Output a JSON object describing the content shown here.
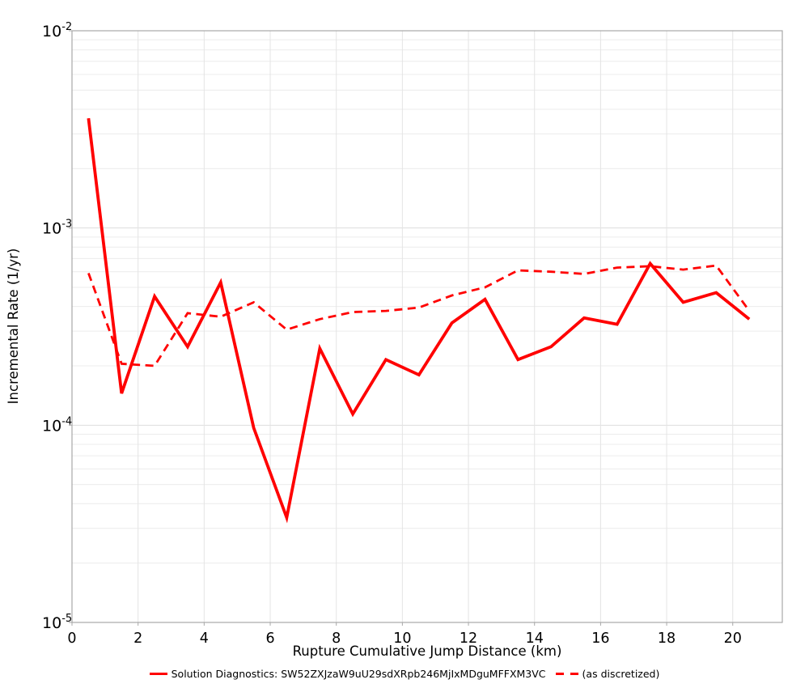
{
  "chart_data": {
    "type": "line",
    "x": [
      0.5,
      1.5,
      2.5,
      3.5,
      4.5,
      5.5,
      6.5,
      7.5,
      8.5,
      9.5,
      10.5,
      11.5,
      12.5,
      13.5,
      14.5,
      15.5,
      16.5,
      17.5,
      18.5,
      19.5,
      20.5
    ],
    "series": [
      {
        "name": "Solution Diagnostics: SW52ZXJzaW9uU29sdXRpb246MjIxMDguMFFXM3VC",
        "style": "solid",
        "values": [
          0.0036,
          0.000145,
          0.00045,
          0.00025,
          0.00053,
          9.7e-05,
          3.4e-05,
          0.000245,
          0.000114,
          0.000215,
          0.00018,
          0.00033,
          0.000435,
          0.000215,
          0.00025,
          0.00035,
          0.000325,
          0.00066,
          0.00042,
          0.00047,
          0.000345
        ]
      },
      {
        "name": "(as discretized)",
        "style": "dashed",
        "values": [
          0.00059,
          0.000205,
          0.0002,
          0.00037,
          0.000355,
          0.00042,
          0.000305,
          0.000345,
          0.000375,
          0.00038,
          0.000395,
          0.000455,
          0.0005,
          0.00061,
          0.0006,
          0.000585,
          0.00063,
          0.00064,
          0.000615,
          0.000645,
          0.00038
        ]
      }
    ],
    "title": "",
    "xlabel": "Rupture Cumulative Jump Distance (km)",
    "ylabel": "Incremental Rate (1/yr)",
    "xlim": [
      0,
      21.5
    ],
    "ylim": [
      1e-05,
      0.01
    ],
    "yscale": "log",
    "x_ticks": [
      0,
      2,
      4,
      6,
      8,
      10,
      12,
      14,
      16,
      18,
      20
    ],
    "grid": true,
    "legend_position": "bottom-center",
    "legend": {
      "items": [
        {
          "label": "Solution Diagnostics: SW52ZXJzaW9uU29sdXRpb246MjIxMDguMFFXM3VC",
          "style": "solid"
        },
        {
          "label": "(as discretized)",
          "style": "dashed"
        }
      ]
    },
    "colors": {
      "series": "#ff0000",
      "grid_major": "#dddddd",
      "grid_minor": "#ececec",
      "axis_border": "#a8a8a8",
      "text": "#000000",
      "background": "#ffffff"
    }
  }
}
